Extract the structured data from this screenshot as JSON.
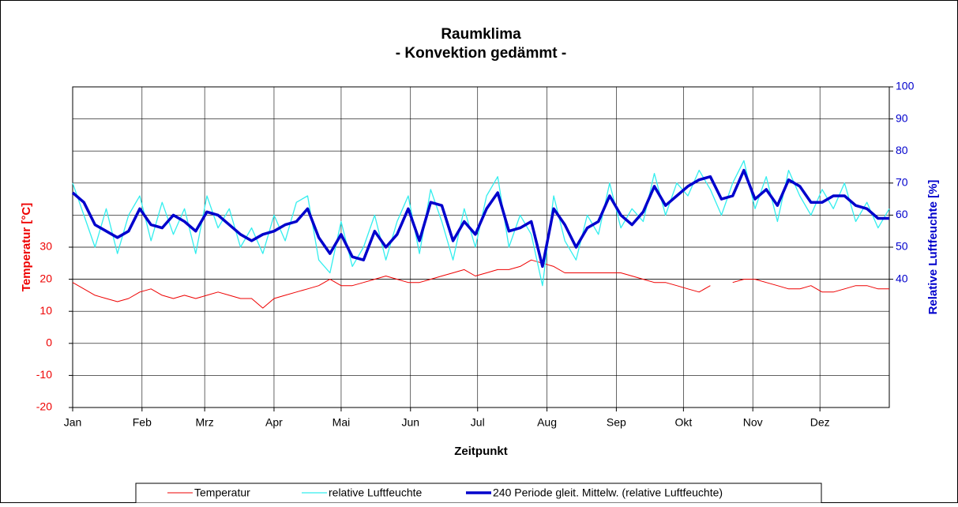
{
  "chart_data": {
    "type": "line",
    "title": "Raumklima",
    "subtitle": "- Konvektion gedämmt -",
    "xlabel": "Zeitpunkt",
    "ylabel": "Temperatur [°C]",
    "y2label": "Relative Luftfeuchte [%]",
    "xlim": [
      0,
      365
    ],
    "xticks": [
      {
        "value": 0,
        "label": "Jan"
      },
      {
        "value": 31,
        "label": "Feb"
      },
      {
        "value": 59,
        "label": "Mrz"
      },
      {
        "value": 90,
        "label": "Apr"
      },
      {
        "value": 120,
        "label": "Mai"
      },
      {
        "value": 151,
        "label": "Jun"
      },
      {
        "value": 181,
        "label": "Jul"
      },
      {
        "value": 212,
        "label": "Aug"
      },
      {
        "value": 243,
        "label": "Sep"
      },
      {
        "value": 273,
        "label": "Okt"
      },
      {
        "value": 304,
        "label": "Nov"
      },
      {
        "value": 334,
        "label": "Dez"
      }
    ],
    "ylim": [
      -20,
      80
    ],
    "yticks": [
      -20,
      -10,
      0,
      10,
      20,
      30
    ],
    "y2lim": [
      0,
      100
    ],
    "y2ticks": [
      40,
      50,
      60,
      70,
      80,
      90,
      100
    ],
    "grid": true,
    "legend": "bottom",
    "x": [
      0,
      5,
      10,
      15,
      20,
      25,
      30,
      35,
      40,
      45,
      50,
      55,
      60,
      65,
      70,
      75,
      80,
      85,
      90,
      95,
      100,
      105,
      110,
      115,
      120,
      125,
      130,
      135,
      140,
      145,
      150,
      155,
      160,
      165,
      170,
      175,
      180,
      185,
      190,
      195,
      200,
      205,
      210,
      215,
      220,
      225,
      230,
      235,
      240,
      245,
      250,
      255,
      260,
      265,
      270,
      275,
      280,
      285,
      290,
      295,
      300,
      305,
      310,
      315,
      320,
      325,
      330,
      335,
      340,
      345,
      350,
      355,
      360,
      365
    ],
    "series": [
      {
        "name": "Temperatur",
        "color": "#ee0000",
        "axis": "y",
        "width": 1,
        "values": [
          19,
          17,
          15,
          14,
          13,
          14,
          16,
          17,
          15,
          14,
          15,
          14,
          15,
          16,
          15,
          14,
          14,
          11,
          14,
          15,
          16,
          17,
          18,
          20,
          18,
          18,
          19,
          20,
          21,
          20,
          19,
          19,
          20,
          21,
          22,
          23,
          21,
          22,
          23,
          23,
          24,
          26,
          25,
          24,
          22,
          22,
          22,
          22,
          22,
          22,
          21,
          20,
          19,
          19,
          18,
          17,
          16,
          18,
          null,
          19,
          20,
          20,
          19,
          18,
          17,
          17,
          18,
          16,
          16,
          17,
          18,
          18,
          17,
          17
        ]
      },
      {
        "name": "relative Luftfeuchte",
        "color": "#33eeee",
        "axis": "y2",
        "width": 1.3,
        "values": [
          70,
          60,
          50,
          62,
          48,
          60,
          66,
          52,
          64,
          54,
          62,
          48,
          66,
          56,
          62,
          50,
          56,
          48,
          60,
          52,
          64,
          66,
          46,
          42,
          58,
          44,
          50,
          60,
          46,
          58,
          66,
          48,
          68,
          58,
          46,
          62,
          50,
          66,
          72,
          50,
          60,
          54,
          38,
          66,
          52,
          46,
          60,
          54,
          70,
          56,
          62,
          58,
          73,
          60,
          70,
          66,
          74,
          68,
          60,
          70,
          77,
          62,
          72,
          58,
          74,
          66,
          60,
          68,
          62,
          70,
          58,
          64,
          56,
          62
        ]
      },
      {
        "name": "240 Periode gleit. Mittelw. (relative Luftfeuchte)",
        "color": "#0000cc",
        "axis": "y2",
        "width": 3.5,
        "values": [
          67,
          64,
          57,
          55,
          53,
          55,
          62,
          57,
          56,
          60,
          58,
          55,
          61,
          60,
          57,
          54,
          52,
          54,
          55,
          57,
          58,
          62,
          53,
          48,
          54,
          47,
          46,
          55,
          50,
          54,
          62,
          52,
          64,
          63,
          52,
          58,
          54,
          62,
          67,
          55,
          56,
          58,
          44,
          62,
          57,
          50,
          56,
          58,
          66,
          60,
          57,
          61,
          69,
          63,
          66,
          69,
          71,
          72,
          65,
          66,
          74,
          65,
          68,
          63,
          71,
          69,
          64,
          64,
          66,
          66,
          63,
          62,
          59,
          59
        ]
      }
    ]
  }
}
